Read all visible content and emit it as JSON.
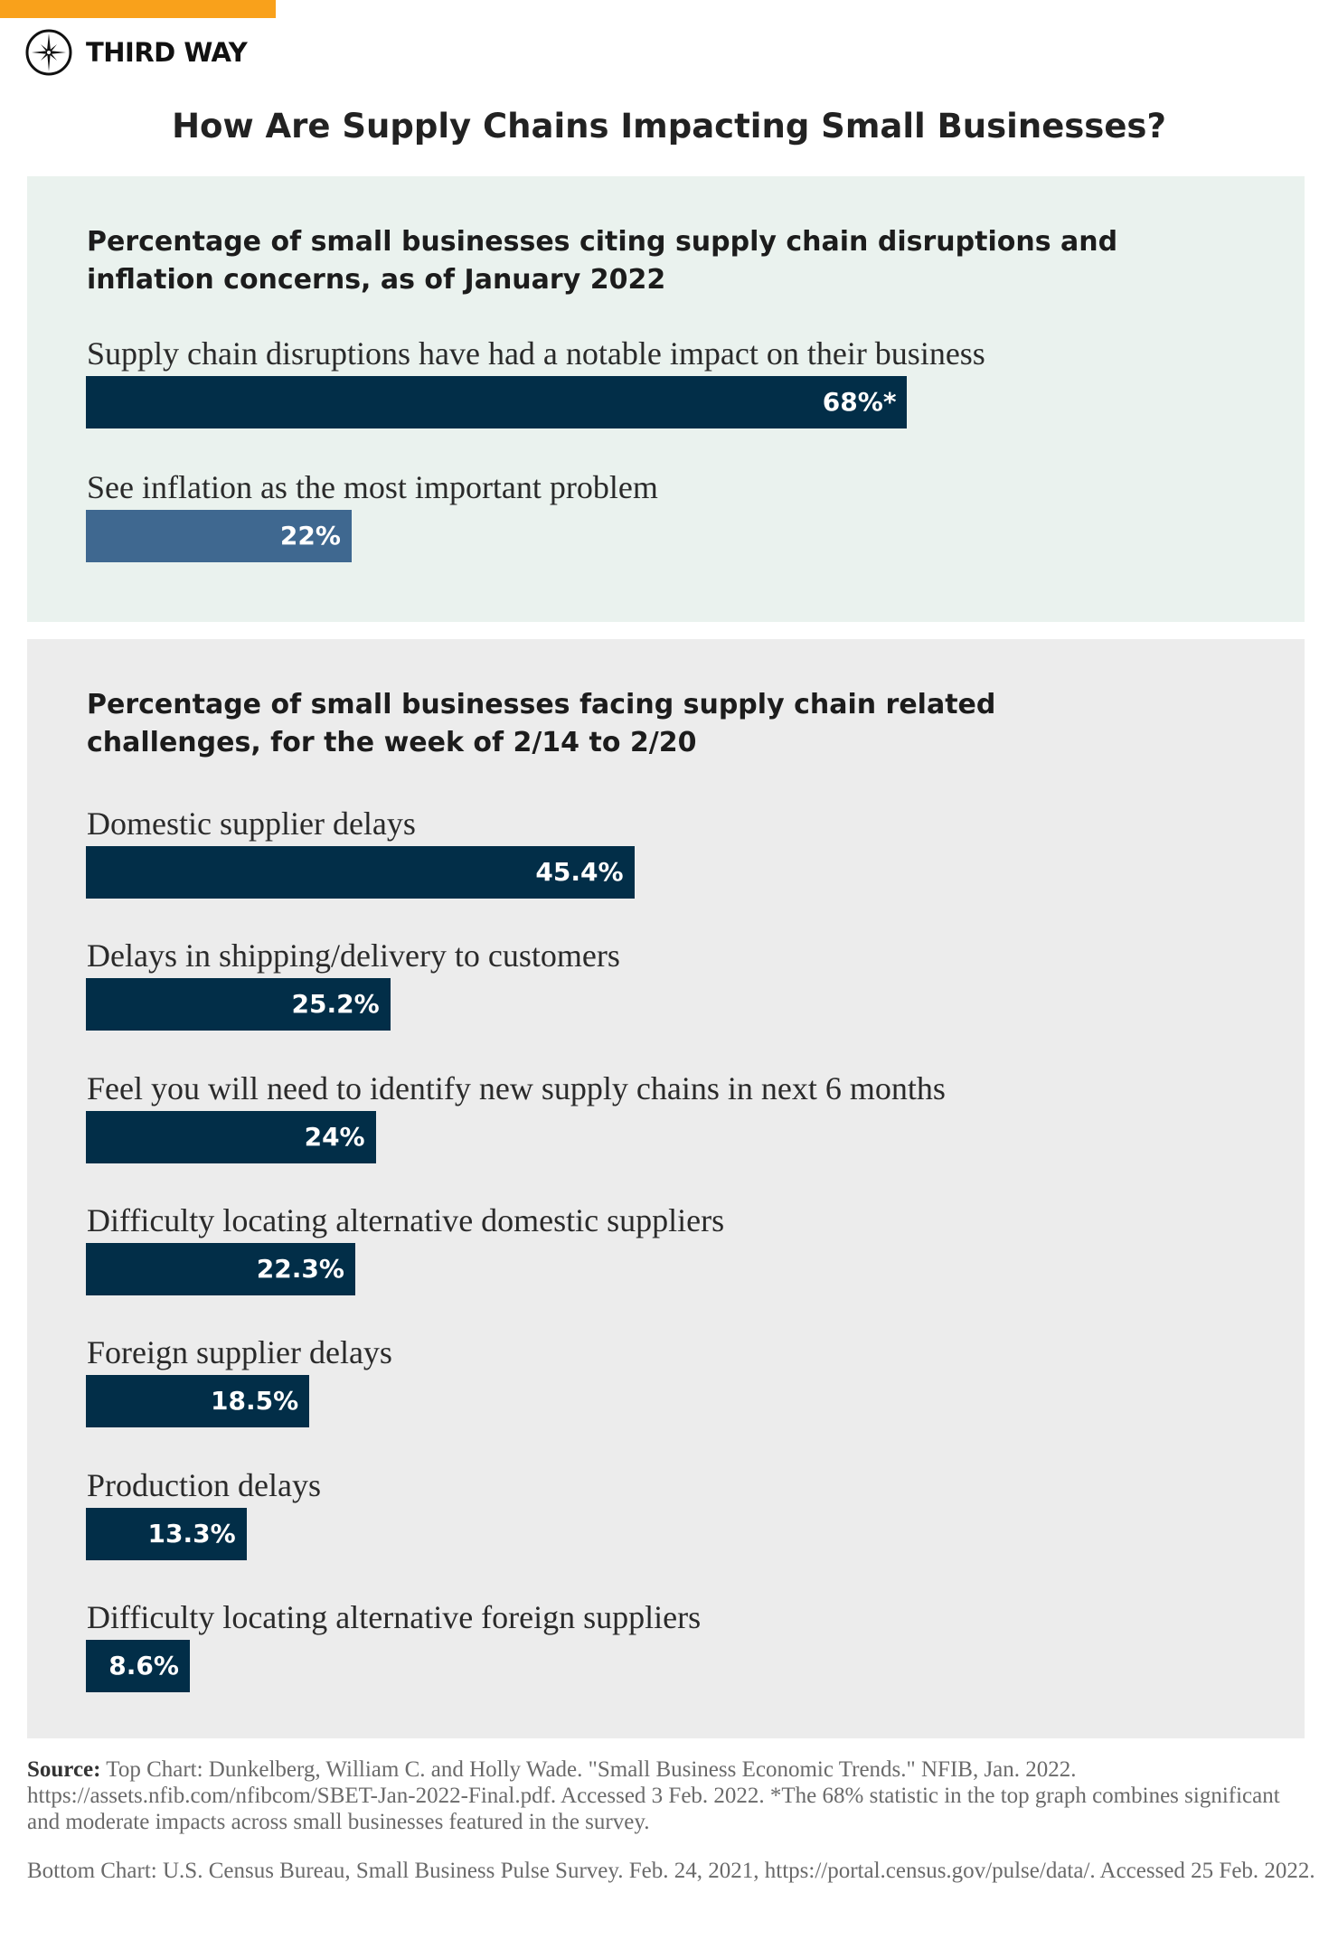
{
  "brand": {
    "name": "THIRD WAY",
    "accent_color": "#f9a11b",
    "icon": "compass-star-icon"
  },
  "title": "How Are Supply Chains Impacting Small Businesses?",
  "chart_data": [
    {
      "type": "bar",
      "orientation": "horizontal",
      "title": "Percentage of small businesses citing supply chain disruptions and inflation concerns, as of January 2022",
      "title_lines": [
        "Percentage of small businesses citing supply chain disruptions and",
        "inflation concerns, as of January 2022"
      ],
      "categories": [
        "Supply chain disruptions have had a notable impact on their business",
        "See inflation as the most important problem"
      ],
      "values": [
        68,
        22
      ],
      "value_labels": [
        "68%*",
        "22%"
      ],
      "colors": [
        "#022e48",
        "#3f6890"
      ],
      "unit": "%",
      "xlim": [
        0,
        100
      ],
      "grid": false,
      "background": "#eaf2ee"
    },
    {
      "type": "bar",
      "orientation": "horizontal",
      "title": "Percentage of small businesses facing supply chain related challenges, for the week of 2/14 to 2/20",
      "title_lines": [
        "Percentage of small businesses facing supply chain related",
        "challenges, for the week of 2/14 to 2/20"
      ],
      "categories": [
        "Domestic supplier delays",
        "Delays in shipping/delivery to customers",
        "Feel you will need to identify new supply chains in next 6 months",
        "Difficulty locating alternative domestic suppliers",
        "Foreign supplier delays",
        "Production delays",
        "Difficulty locating alternative foreign suppliers"
      ],
      "values": [
        45.4,
        25.2,
        24,
        22.3,
        18.5,
        13.3,
        8.6
      ],
      "value_labels": [
        "45.4%",
        "25.2%",
        "24%",
        "22.3%",
        "18.5%",
        "13.3%",
        "8.6%"
      ],
      "colors": [
        "#022e48"
      ],
      "unit": "%",
      "xlim": [
        0,
        100
      ],
      "grid": false,
      "background": "#ececec"
    }
  ],
  "source": {
    "label": "Source:",
    "top": "Top Chart: Dunkelberg, William C. and Holly Wade. \"Small Business Economic Trends.\" NFIB, Jan. 2022. https://assets.nfib.com/nfibcom/SBET-Jan-2022-Final.pdf. Accessed 3 Feb. 2022. *The 68% statistic in the top graph combines significant and moderate impacts across small businesses featured in the survey.",
    "bottom": "Bottom Chart: U.S. Census Bureau, Small Business Pulse Survey. Feb. 24, 2021, https://portal.census.gov/pulse/data/. Accessed 25 Feb. 2022."
  }
}
